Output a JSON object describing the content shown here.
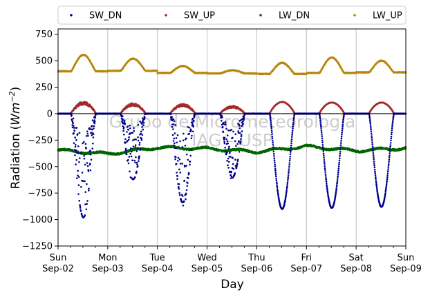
{
  "chart_data": {
    "type": "scatter",
    "title": "",
    "xlabel": "Day",
    "ylabel_main": "Radiation (",
    "ylabel_unit_base": "Wm",
    "ylabel_unit_exp": "−2",
    "ylabel_close": ")",
    "ylim": [
      -1250,
      800
    ],
    "yticks": [
      -1250,
      -1000,
      -750,
      -500,
      -250,
      0,
      250,
      500,
      750
    ],
    "ytick_labels": [
      "−1250",
      "−1000",
      "−750",
      "−500",
      "−250",
      "0",
      "250",
      "500",
      "750"
    ],
    "xlim_days": [
      0,
      7
    ],
    "x_ticks": [
      {
        "day": 0,
        "weekday": "Sun",
        "date": "Sep-02"
      },
      {
        "day": 1,
        "weekday": "Mon",
        "date": "Sep-03"
      },
      {
        "day": 2,
        "weekday": "Tue",
        "date": "Sep-04"
      },
      {
        "day": 3,
        "weekday": "Wed",
        "date": "Sep-05"
      },
      {
        "day": 4,
        "weekday": "Thu",
        "date": "Sep-06"
      },
      {
        "day": 5,
        "weekday": "Fri",
        "date": "Sep-07"
      },
      {
        "day": 6,
        "weekday": "Sat",
        "date": "Sep-08"
      },
      {
        "day": 7,
        "weekday": "Sun",
        "date": "Sep-09"
      }
    ],
    "grid": "vertical",
    "zero_line": true,
    "legend_position": "top, outside, single row",
    "watermark": [
      "Grupo de Micrometeorologia",
      "IAG - USP"
    ],
    "series": [
      {
        "name": "SW_DN",
        "color": "#00008b",
        "night": 0,
        "day_peaks": [
          -980,
          -620,
          -840,
          -600,
          -900,
          -890,
          -880
        ]
      },
      {
        "name": "SW_UP",
        "color": "#a52a2a",
        "night": 0,
        "day_peaks": [
          110,
          95,
          90,
          70,
          110,
          105,
          105
        ]
      },
      {
        "name": "LW_DN",
        "color": "#006400",
        "night": -335,
        "day_values": [
          -345,
          -380,
          -320,
          -330,
          -360,
          -310,
          -350,
          -325
        ]
      },
      {
        "name": "LW_UP",
        "color": "#b8860b",
        "night": 395,
        "day_peaks": [
          555,
          520,
          450,
          410,
          480,
          530,
          500
        ],
        "day_baseline": [
          400,
          405,
          385,
          380,
          375,
          385,
          390,
          380
        ]
      }
    ]
  }
}
